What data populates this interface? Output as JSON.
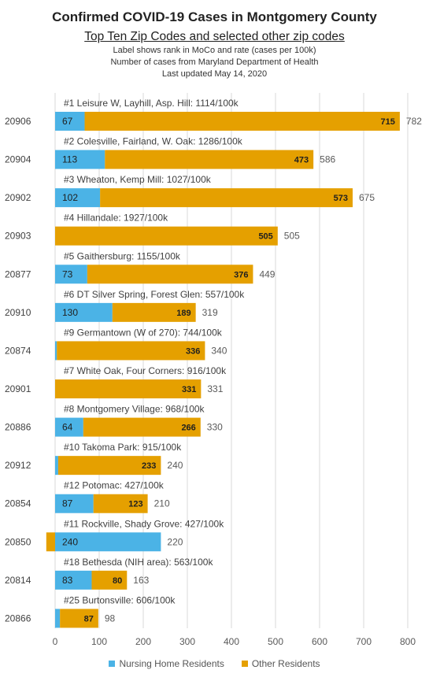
{
  "chart_data": {
    "type": "bar",
    "orientation": "horizontal",
    "stacked": true,
    "title": "Confirmed COVID-19 Cases in Montgomery County",
    "subtitle": "Top Ten Zip Codes and selected other zip codes",
    "notes": [
      "Label shows rank in MoCo and rate (cases per 100k)",
      "Number of cases from Maryland Department of Health",
      "Last updated May 14, 2020"
    ],
    "categories": [
      "20906",
      "20904",
      "20902",
      "20903",
      "20877",
      "20910",
      "20874",
      "20901",
      "20886",
      "20912",
      "20854",
      "20850",
      "20814",
      "20866"
    ],
    "rank_labels": [
      "#1 Leisure W, Layhill, Asp. Hill: 1114/100k",
      "#2 Colesville, Fairland, W. Oak: 1286/100k",
      "#3 Wheaton, Kemp Mill: 1027/100k",
      "#4 Hillandale: 1927/100k",
      "#5 Gaithersburg: 1155/100k",
      "#6 DT Silver Spring, Forest Glen: 557/100k",
      "#9 Germantown (W of 270): 744/100k",
      "#7 White Oak, Four Corners: 916/100k",
      "#8 Montgomery Village: 968/100k",
      "#10 Takoma Park: 915/100k",
      "#12 Potomac: 427/100k",
      "#11 Rockville, Shady Grove: 427/100k",
      "#18 Bethesda (NIH area): 563/100k",
      "#25 Burtonsville: 606/100k"
    ],
    "series": [
      {
        "name": "Nursing Home Residents",
        "color": "#4bb3e6",
        "values": [
          67,
          113,
          102,
          null,
          73,
          130,
          4,
          null,
          64,
          7,
          87,
          240,
          83,
          11
        ]
      },
      {
        "name": "Other Residents",
        "color": "#e5a000",
        "values": [
          715,
          473,
          573,
          505,
          376,
          189,
          336,
          331,
          266,
          233,
          123,
          -20,
          80,
          87
        ]
      }
    ],
    "other_value_labels": [
      "715",
      "473",
      "573",
      "505",
      "376",
      "189",
      "336",
      "331",
      "266",
      "233",
      "123",
      "",
      "80",
      "87"
    ],
    "totals": [
      782,
      586,
      675,
      505,
      449,
      319,
      340,
      331,
      330,
      240,
      210,
      220,
      163,
      98
    ],
    "xlim": [
      0,
      800
    ],
    "x_ticks": [
      0,
      100,
      200,
      300,
      400,
      500,
      600,
      700,
      800
    ],
    "grid": "vertical",
    "legend_position": "bottom"
  }
}
